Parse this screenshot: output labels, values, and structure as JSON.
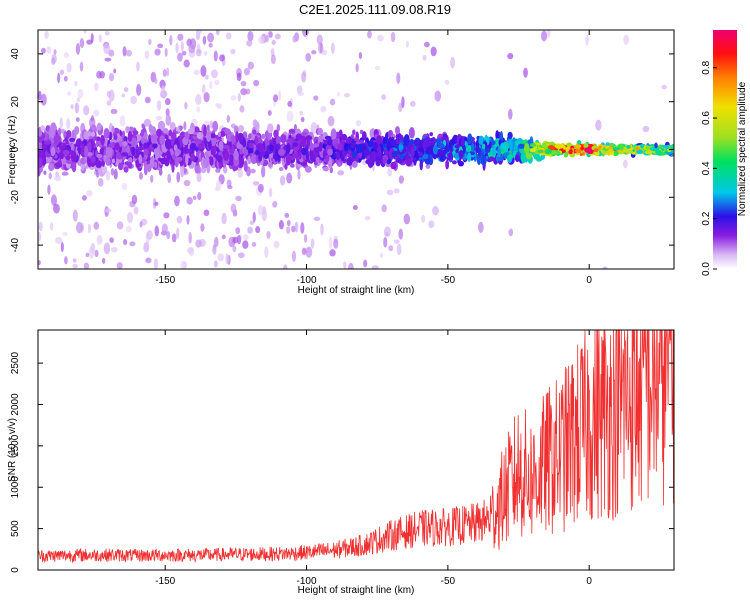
{
  "title": "C2E1.2025.111.09.08.R19",
  "colors": {
    "snr_line": "#f03030",
    "spectrogram_background": "#ffffff"
  },
  "chart_data": [
    {
      "type": "heatmap",
      "title": "C2E1.2025.111.09.08.R19",
      "xlabel": "Height of straight line (km)",
      "ylabel": "Frequency (Hz)",
      "xlim": [
        -195,
        30
      ],
      "ylim": [
        -50,
        50
      ],
      "xticks": [
        -150,
        -100,
        -50,
        0
      ],
      "yticks": [
        -40,
        -20,
        0,
        20,
        40
      ],
      "colorbar": {
        "label": "Normalized spectral amplitude",
        "range": [
          0,
          0.95
        ],
        "ticks": [
          0.0,
          0.2,
          0.4,
          0.6,
          0.8
        ],
        "colormap": "rainbow (white-violet-blue-cyan-green-yellow-orange-red-magenta)"
      },
      "main_band": {
        "center_frequency_hz": 0,
        "points": [
          {
            "height_km": -195,
            "amplitude": 0.15,
            "halfwidth_hz": 10
          },
          {
            "height_km": -150,
            "amplitude": 0.15,
            "halfwidth_hz": 10
          },
          {
            "height_km": -100,
            "amplitude": 0.17,
            "halfwidth_hz": 8
          },
          {
            "height_km": -75,
            "amplitude": 0.22,
            "halfwidth_hz": 7
          },
          {
            "height_km": -50,
            "amplitude": 0.3,
            "halfwidth_hz": 6
          },
          {
            "height_km": -25,
            "amplitude": 0.4,
            "halfwidth_hz": 5
          },
          {
            "height_km": -15,
            "amplitude": 0.75,
            "halfwidth_hz": 3
          },
          {
            "height_km": 0,
            "amplitude": 0.95,
            "halfwidth_hz": 2
          },
          {
            "height_km": 10,
            "amplitude": 0.7,
            "halfwidth_hz": 2
          },
          {
            "height_km": 30,
            "amplitude": 0.55,
            "halfwidth_hz": 2
          }
        ]
      }
    },
    {
      "type": "line",
      "title": "",
      "xlabel": "Height of straight line (km)",
      "ylabel": "SNR (10 * v/v)",
      "xlim": [
        -195,
        30
      ],
      "ylim": [
        0,
        2900
      ],
      "xticks": [
        -150,
        -100,
        -50,
        0
      ],
      "yticks": [
        0,
        500,
        1000,
        1500,
        2000,
        2500
      ],
      "series": [
        {
          "points": [
            {
              "x": -195,
              "y": 170
            },
            {
              "x": -180,
              "y": 180
            },
            {
              "x": -170,
              "y": 180
            },
            {
              "x": -160,
              "y": 175
            },
            {
              "x": -150,
              "y": 180
            },
            {
              "x": -140,
              "y": 180
            },
            {
              "x": -130,
              "y": 185
            },
            {
              "x": -120,
              "y": 190
            },
            {
              "x": -110,
              "y": 195
            },
            {
              "x": -100,
              "y": 210
            },
            {
              "x": -90,
              "y": 240
            },
            {
              "x": -80,
              "y": 300
            },
            {
              "x": -70,
              "y": 420
            },
            {
              "x": -60,
              "y": 500
            },
            {
              "x": -50,
              "y": 520
            },
            {
              "x": -40,
              "y": 560
            },
            {
              "x": -35,
              "y": 620
            },
            {
              "x": -30,
              "y": 900
            },
            {
              "x": -25,
              "y": 1200
            },
            {
              "x": -20,
              "y": 1100
            },
            {
              "x": -15,
              "y": 1300
            },
            {
              "x": -10,
              "y": 1400
            },
            {
              "x": -5,
              "y": 1600
            },
            {
              "x": 0,
              "y": 1800
            },
            {
              "x": 10,
              "y": 2000
            },
            {
              "x": 20,
              "y": 2300
            },
            {
              "x": 30,
              "y": 2600
            }
          ]
        }
      ]
    }
  ]
}
